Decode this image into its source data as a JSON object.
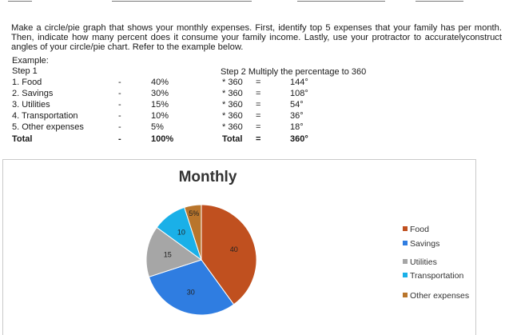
{
  "instructions": "Make a circle/pie graph that shows your monthly expenses. First, identify top 5 expenses that your family has per month. Then, indicate how many percent does it consume your family income. Lastly, use your protractor to accuratelyconstruct angles of your circle/pie chart. Refer to the example below.",
  "example_label": "Example:",
  "step1_label": "Step 1",
  "step2_label": "Step 2 Multiply the percentage to 360",
  "rows": [
    {
      "item": "1. Food",
      "dash": "-",
      "percent": "40%",
      "mult": "* 360",
      "eq": "=",
      "degrees": "144°"
    },
    {
      "item": "2. Savings",
      "dash": "-",
      "percent": "30%",
      "mult": "* 360",
      "eq": "=",
      "degrees": "108°"
    },
    {
      "item": "3. Utilities",
      "dash": "-",
      "percent": "15%",
      "mult": "* 360",
      "eq": "=",
      "degrees": "54°"
    },
    {
      "item": "4. Transportation",
      "dash": "-",
      "percent": "10%",
      "mult": "* 360",
      "eq": "=",
      "degrees": "36°"
    },
    {
      "item": "5. Other expenses",
      "dash": "-",
      "percent": "5%",
      "mult": "* 360",
      "eq": "=",
      "degrees": "18°"
    }
  ],
  "total_row": {
    "item": "Total",
    "dash": "-",
    "percent": "100%",
    "mult": "Total",
    "eq": "=",
    "degrees": "360°"
  },
  "chart_data": {
    "type": "pie",
    "title": "Monthly",
    "categories": [
      "Food",
      "Savings",
      "Utilities",
      "Transportation",
      "Other expenses"
    ],
    "values": [
      40,
      30,
      15,
      10,
      5
    ],
    "data_labels": [
      "40",
      "30",
      "15",
      "10",
      "5%"
    ],
    "colors": [
      "#c0501f",
      "#2f7de1",
      "#a6a6a6",
      "#1ab0e8",
      "#b9752c"
    ],
    "legend_position": "right"
  }
}
